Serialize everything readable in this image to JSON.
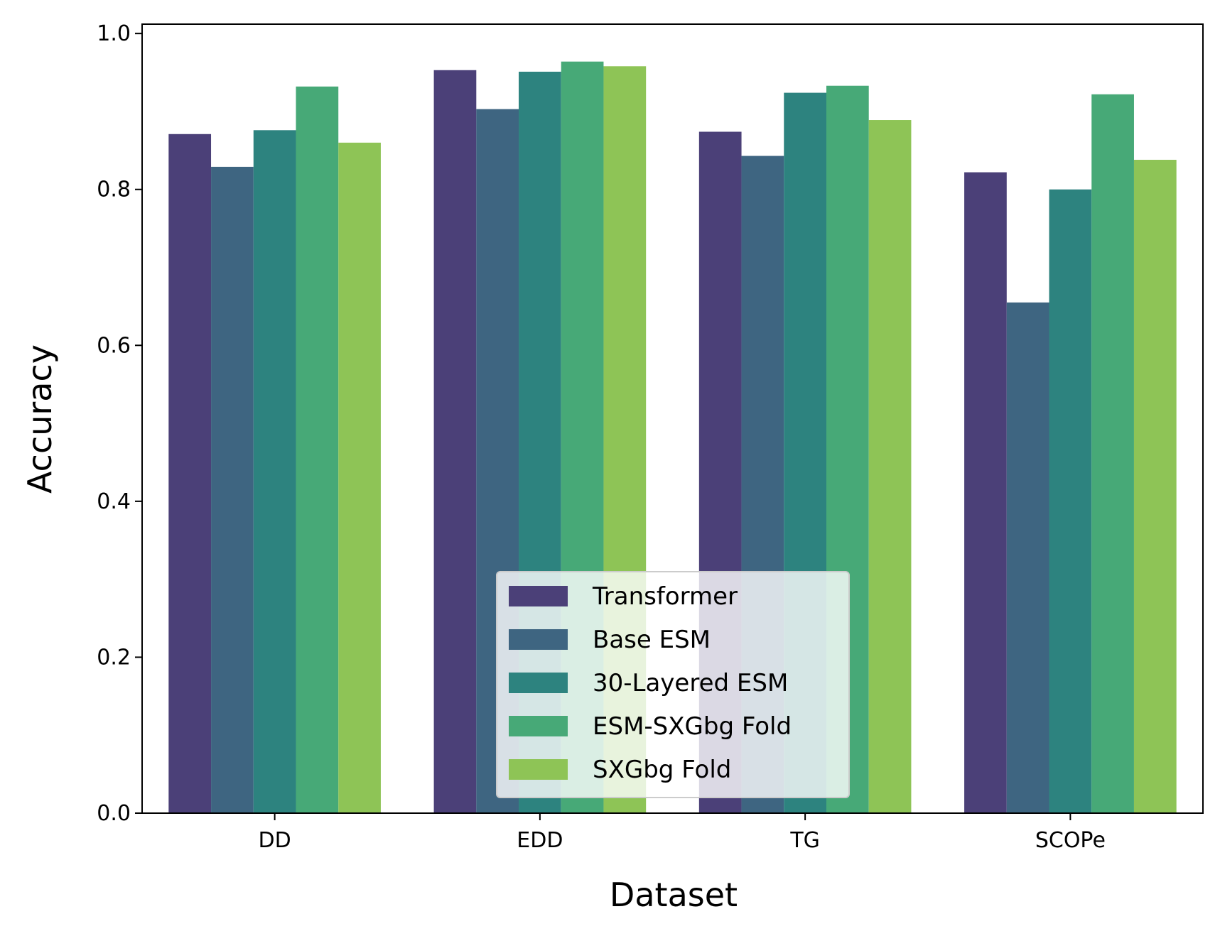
{
  "chart_data": {
    "type": "bar",
    "title": "",
    "xlabel": "Dataset",
    "ylabel": "Accuracy",
    "categories": [
      "DD",
      "EDD",
      "TG",
      "SCOPe"
    ],
    "ylim": [
      0,
      1.0
    ],
    "yticks": [
      0.0,
      0.2,
      0.4,
      0.6,
      0.8,
      1.0
    ],
    "ytick_labels": [
      "0.0",
      "0.2",
      "0.4",
      "0.6",
      "0.8",
      "1.0"
    ],
    "grid": false,
    "legend_position": "bottom-center",
    "series": [
      {
        "name": "Transformer",
        "color": "#4b4078",
        "values": [
          0.871,
          0.953,
          0.874,
          0.822
        ]
      },
      {
        "name": "Base ESM",
        "color": "#3e6581",
        "values": [
          0.829,
          0.903,
          0.843,
          0.655
        ]
      },
      {
        "name": "30-Layered ESM",
        "color": "#2d837f",
        "values": [
          0.876,
          0.951,
          0.924,
          0.8
        ]
      },
      {
        "name": "ESM-SXGbg Fold",
        "color": "#47a977",
        "values": [
          0.932,
          0.964,
          0.933,
          0.922
        ]
      },
      {
        "name": "SXGbg Fold",
        "color": "#8ec456",
        "values": [
          0.86,
          0.958,
          0.889,
          0.838
        ]
      }
    ]
  }
}
